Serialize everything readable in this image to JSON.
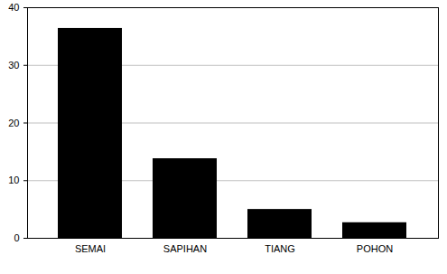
{
  "chart_data": {
    "type": "bar",
    "categories": [
      "SEMAI",
      "SAPIHAN",
      "TIANG",
      "POHON"
    ],
    "values": [
      36.4,
      13.8,
      5.0,
      2.7
    ],
    "color": "#000000",
    "ylim": [
      0,
      40
    ],
    "yticks": [
      0,
      10,
      20,
      30,
      40
    ],
    "grid": true
  }
}
